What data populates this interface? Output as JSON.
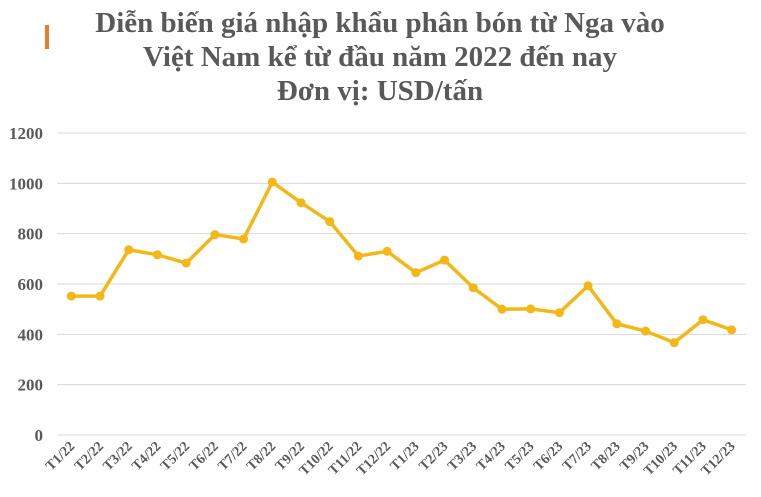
{
  "title": {
    "line1": "Diễn biến giá nhập khẩu phân bón từ Nga vào",
    "line2": "Việt Nam kể từ đầu năm 2022 đến nay",
    "line3": "Đơn vị: USD/tấn"
  },
  "colors": {
    "accent": "#E87B2C",
    "line": "#F5B716",
    "grid": "#D9D9D9",
    "text": "#595959"
  },
  "chart_data": {
    "type": "line",
    "title": "Diễn biến giá nhập khẩu phân bón từ Nga vào Việt Nam kể từ đầu năm 2022 đến nay",
    "subtitle": "Đơn vị: USD/tấn",
    "xlabel": "",
    "ylabel": "USD/tấn",
    "ylim": [
      0,
      1200
    ],
    "yticks": [
      0,
      200,
      400,
      600,
      800,
      1000,
      1200
    ],
    "grid": true,
    "legend": "none",
    "categories": [
      "T1/22",
      "T2/22",
      "T3/22",
      "T4/22",
      "T5/22",
      "T6/22",
      "T7/22",
      "T8/22",
      "T9/22",
      "T10/22",
      "T11/22",
      "T12/22",
      "T1/23",
      "T2/23",
      "T3/23",
      "T4/23",
      "T5/23",
      "T6/23",
      "T7/23",
      "T8/23",
      "T9/23",
      "T10/23",
      "T11/23",
      "T12/23"
    ],
    "series": [
      {
        "name": "Giá nhập khẩu phân bón từ Nga",
        "values": [
          552,
          552,
          736,
          716,
          683,
          796,
          779,
          1005,
          923,
          848,
          711,
          730,
          645,
          695,
          585,
          500,
          501,
          486,
          593,
          442,
          413,
          367,
          458,
          418
        ]
      }
    ]
  }
}
